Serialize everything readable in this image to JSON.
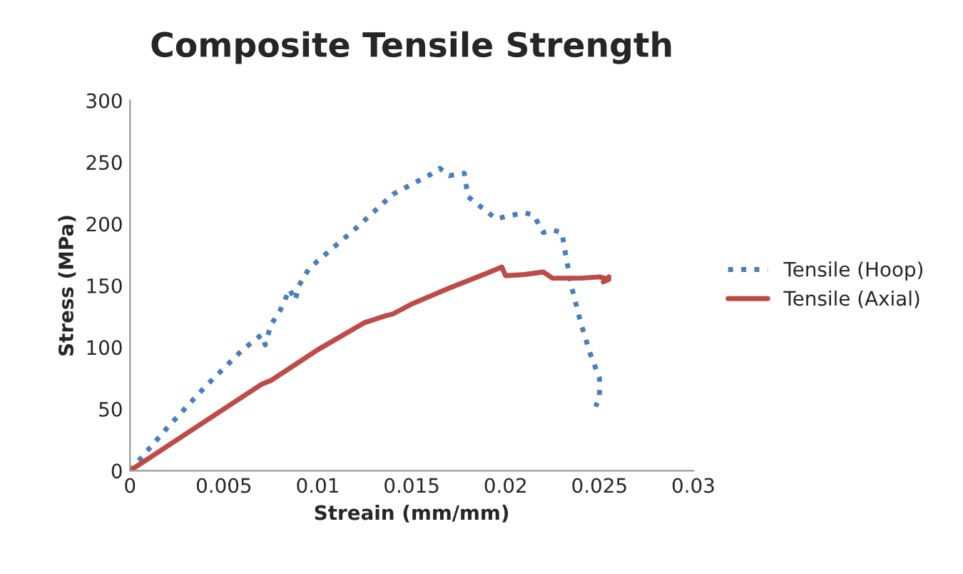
{
  "chart_data": {
    "type": "line",
    "title": "Composite Tensile Strength",
    "xlabel": "Streain (mm/mm)",
    "ylabel": "Stress (MPa)",
    "xlim": [
      0,
      0.03
    ],
    "xticks": [
      {
        "value": 0,
        "label": "0"
      },
      0.005,
      0.01,
      0.015,
      0.02,
      0.025,
      0.03
    ],
    "ylim": [
      0,
      300
    ],
    "yticks": [
      0,
      50,
      100,
      150,
      200,
      250,
      300
    ],
    "grid": false,
    "legend": "right",
    "series": [
      {
        "name": "Tensile (Hoop)",
        "color": "#4a7ebb",
        "line_style": "dotted",
        "x": [
          0,
          0.002,
          0.004,
          0.006,
          0.007,
          0.0072,
          0.0075,
          0.008,
          0.0085,
          0.0088,
          0.009,
          0.0095,
          0.01,
          0.011,
          0.012,
          0.013,
          0.014,
          0.015,
          0.016,
          0.0165,
          0.017,
          0.0178,
          0.018,
          0.019,
          0.0195,
          0.02,
          0.021,
          0.0215,
          0.022,
          0.0225,
          0.023,
          0.0232,
          0.0235,
          0.024,
          0.0245,
          0.025,
          0.025,
          0.0248
        ],
        "values": [
          0,
          35,
          68,
          98,
          110,
          102,
          118,
          130,
          147,
          138,
          150,
          163,
          170,
          183,
          196,
          210,
          224,
          232,
          240,
          245,
          239,
          241,
          222,
          210,
          204,
          206,
          209,
          207,
          193,
          195,
          193,
          175,
          150,
          120,
          95,
          75,
          60,
          52
        ]
      },
      {
        "name": "Tensile (Axial)",
        "color": "#be4b48",
        "line_style": "solid",
        "x": [
          0,
          0.007,
          0.0075,
          0.01,
          0.0125,
          0.0135,
          0.014,
          0.015,
          0.017,
          0.019,
          0.0198,
          0.02,
          0.021,
          0.022,
          0.0225,
          0.024,
          0.025,
          0.0255,
          0.0252,
          0.0255
        ],
        "values": [
          0,
          70,
          73,
          98,
          120,
          125,
          127,
          135,
          148,
          160,
          165,
          158,
          159,
          161,
          156,
          156,
          157,
          155,
          153,
          157
        ]
      }
    ]
  }
}
